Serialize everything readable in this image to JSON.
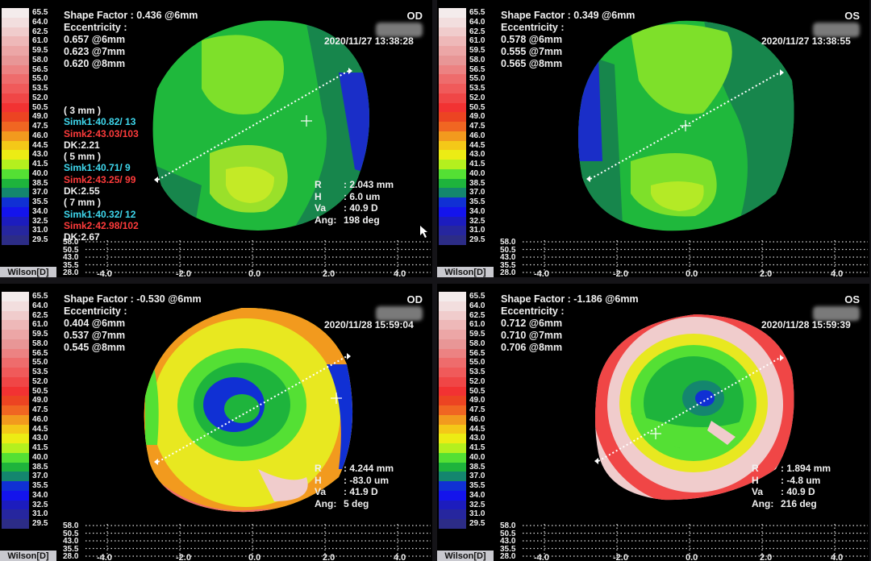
{
  "scale": {
    "values": [
      "65.5",
      "64.0",
      "62.5",
      "61.0",
      "59.5",
      "58.0",
      "56.5",
      "55.0",
      "53.5",
      "52.0",
      "50.5",
      "49.0",
      "47.5",
      "46.0",
      "44.5",
      "43.0",
      "41.5",
      "40.0",
      "38.5",
      "37.0",
      "35.5",
      "34.0",
      "32.5",
      "31.0",
      "29.5"
    ],
    "colors": [
      "#f4ecec",
      "#f2dede",
      "#f0cccc",
      "#eeb8b8",
      "#eca6a6",
      "#e89696",
      "#ec8282",
      "#ee6c6c",
      "#f05a5a",
      "#f04646",
      "#f23232",
      "#ec4422",
      "#f06622",
      "#f29a1e",
      "#f4c818",
      "#ecec14",
      "#b4f01e",
      "#54e034",
      "#1eb43c",
      "#14866e",
      "#1030d4",
      "#1414ec",
      "#1c1cbe",
      "#26269e",
      "#2c2c86"
    ],
    "footer": "Wilson[D]"
  },
  "profile": {
    "y_labels": [
      "58.0",
      "50.5",
      "43.0",
      "35.5",
      "28.0"
    ],
    "x_labels": [
      "-4.0",
      "-2.0",
      "0.0",
      "2.0",
      "4.0"
    ]
  },
  "quadrants": [
    {
      "eye": "OD",
      "shape_factor": "Shape Factor : 0.436 @6mm",
      "eccentricity_label": "Eccentricity :",
      "eccentricity": [
        "0.657 @6mm",
        "0.623 @7mm",
        "0.620 @8mm"
      ],
      "timestamp": "2020/11/27 13:38:28",
      "simk": [
        {
          "text": "( 3 mm )",
          "color": "white"
        },
        {
          "text": "Simk1:40.82/ 13",
          "color": "cyan"
        },
        {
          "text": "Simk2:43.03/103",
          "color": "red"
        },
        {
          "text": "DK:2.21",
          "color": "white"
        },
        {
          "text": "( 5 mm )",
          "color": "white"
        },
        {
          "text": "Simk1:40.71/  9",
          "color": "cyan"
        },
        {
          "text": "Simk2:43.25/ 99",
          "color": "red"
        },
        {
          "text": "DK:2.55",
          "color": "white"
        },
        {
          "text": "( 7 mm )",
          "color": "white"
        },
        {
          "text": "Simk1:40.32/ 12",
          "color": "cyan"
        },
        {
          "text": "Simk2:42.98/102",
          "color": "red"
        },
        {
          "text": "DK:2.67",
          "color": "white"
        }
      ],
      "measure": [
        {
          "k": "R",
          "v": ": 2.043 mm"
        },
        {
          "k": "H",
          "v": ": 6.0 um"
        },
        {
          "k": "Va",
          "v": ": 40.9 D"
        },
        {
          "k": "Ang:",
          "v": "198 deg"
        }
      ]
    },
    {
      "eye": "OS",
      "shape_factor": "Shape Factor : 0.349 @6mm",
      "eccentricity_label": "Eccentricity :",
      "eccentricity": [
        "0.578 @6mm",
        "0.555 @7mm",
        "0.565 @8mm"
      ],
      "timestamp": "2020/11/27 13:38:55",
      "simk": [],
      "measure": []
    },
    {
      "eye": "OD",
      "shape_factor": "Shape Factor : -0.530 @6mm",
      "eccentricity_label": "Eccentricity :",
      "eccentricity": [
        "0.404 @6mm",
        "0.537 @7mm",
        "0.545 @8mm"
      ],
      "timestamp": "2020/11/28 15:59:04",
      "simk": [],
      "measure": [
        {
          "k": "R",
          "v": ": 4.244 mm"
        },
        {
          "k": "H",
          "v": ": -83.0 um"
        },
        {
          "k": "Va",
          "v": ": 41.9 D"
        },
        {
          "k": "Ang:",
          "v": "5 deg"
        }
      ]
    },
    {
      "eye": "OS",
      "shape_factor": "Shape Factor : -1.186 @6mm",
      "eccentricity_label": "Eccentricity :",
      "eccentricity": [
        "0.712 @6mm",
        "0.710 @7mm",
        "0.706 @8mm"
      ],
      "timestamp": "2020/11/28 15:59:39",
      "simk": [],
      "measure": [
        {
          "k": "R",
          "v": ": 1.894 mm"
        },
        {
          "k": "H",
          "v": ": -4.8 um"
        },
        {
          "k": "Va",
          "v": ": 40.9 D"
        },
        {
          "k": "Ang:",
          "v": "216 deg"
        }
      ]
    }
  ]
}
